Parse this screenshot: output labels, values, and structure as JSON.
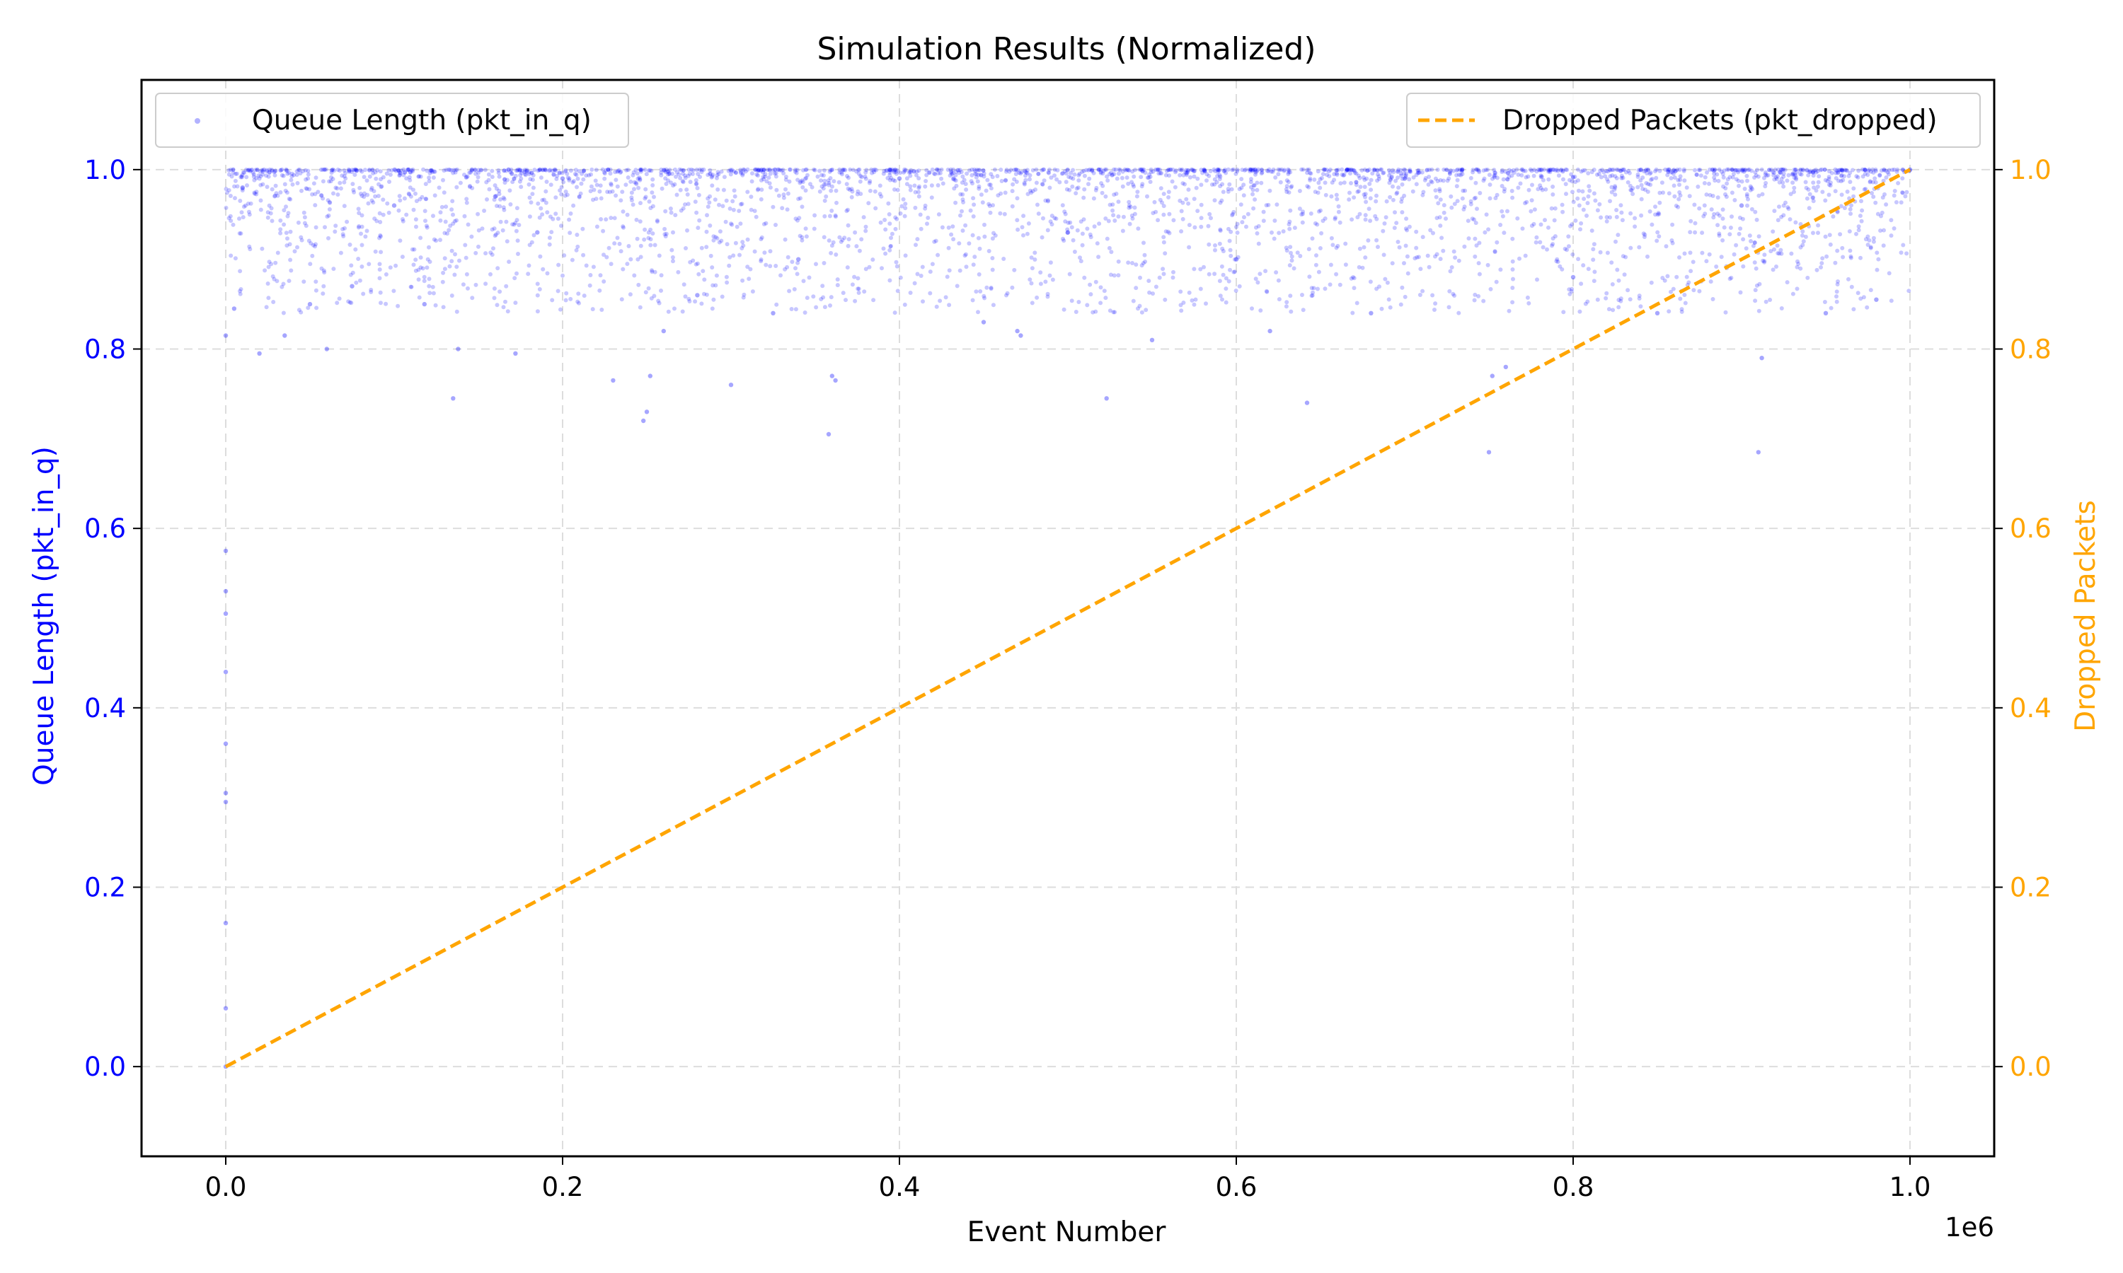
{
  "chart_data": {
    "type": "scatter",
    "title": "Simulation Results (Normalized)",
    "xlabel": "Event Number",
    "x_multiplier_label": "1e6",
    "xlim": [
      -50000,
      1050000
    ],
    "x_ticks": [
      0,
      200000,
      400000,
      600000,
      800000,
      1000000
    ],
    "x_tick_labels": [
      "0.0",
      "0.2",
      "0.4",
      "0.6",
      "0.8",
      "1.0"
    ],
    "grid": true,
    "left_axis": {
      "label": "Queue Length (pkt_in_q)",
      "color": "#0000ff",
      "ylim": [
        -0.1,
        1.1
      ],
      "ticks": [
        0.0,
        0.2,
        0.4,
        0.6,
        0.8,
        1.0
      ],
      "tick_labels": [
        "0.0",
        "0.2",
        "0.4",
        "0.6",
        "0.8",
        "1.0"
      ]
    },
    "right_axis": {
      "label": "Dropped Packets",
      "color": "#ffa500",
      "ylim": [
        -0.1,
        1.1
      ],
      "ticks": [
        0.0,
        0.2,
        0.4,
        0.6,
        0.8,
        1.0
      ],
      "tick_labels": [
        "0.0",
        "0.2",
        "0.4",
        "0.6",
        "0.8",
        "1.0"
      ]
    },
    "series": [
      {
        "name": "Queue Length (pkt_in_q)",
        "type": "scatter",
        "axis": "left",
        "color": "#0000ff",
        "legend_position": "upper left",
        "x": [
          0,
          0,
          0,
          0,
          0,
          0,
          0,
          0,
          0,
          0,
          0,
          5000,
          10000,
          20000,
          35000,
          50000,
          60000,
          75000,
          100000,
          118000,
          135000,
          138000,
          160000,
          172000,
          185000,
          200000,
          230000,
          248000,
          250000,
          252000,
          260000,
          280000,
          300000,
          325000,
          340000,
          358000,
          360000,
          362000,
          400000,
          450000,
          470000,
          472000,
          500000,
          523000,
          550000,
          600000,
          620000,
          642000,
          680000,
          700000,
          750000,
          752000,
          760000,
          800000,
          850000,
          900000,
          910000,
          912000,
          950000,
          980000,
          1000000
        ],
        "y": [
          0.575,
          0.53,
          0.505,
          0.44,
          0.36,
          0.305,
          0.295,
          0.16,
          0.065,
          0.0,
          0.815,
          0.845,
          0.98,
          0.795,
          0.815,
          0.85,
          0.8,
          0.87,
          0.96,
          0.85,
          0.745,
          0.8,
          0.97,
          0.795,
          0.93,
          0.99,
          0.765,
          0.72,
          0.73,
          0.77,
          0.82,
          0.86,
          0.76,
          0.84,
          0.9,
          0.705,
          0.77,
          0.765,
          0.99,
          0.83,
          0.82,
          0.815,
          0.93,
          0.745,
          0.81,
          0.9,
          0.82,
          0.74,
          0.84,
          0.99,
          0.685,
          0.77,
          0.78,
          0.88,
          0.84,
          0.96,
          0.685,
          0.79,
          0.84,
          0.855,
          1.0
        ]
      },
      {
        "name": "Dropped Packets (pkt_dropped)",
        "type": "line",
        "style": "dashed",
        "axis": "right",
        "color": "#ffa500",
        "legend_position": "upper right",
        "x": [
          0,
          50000,
          100000,
          150000,
          200000,
          250000,
          300000,
          350000,
          400000,
          450000,
          500000,
          550000,
          600000,
          650000,
          700000,
          750000,
          800000,
          850000,
          900000,
          950000,
          1000000
        ],
        "y": [
          0.0,
          0.05,
          0.1,
          0.15,
          0.2,
          0.25,
          0.3,
          0.35,
          0.4,
          0.45,
          0.5,
          0.55,
          0.6,
          0.65,
          0.7,
          0.75,
          0.8,
          0.85,
          0.9,
          0.95,
          1.0
        ]
      }
    ]
  }
}
